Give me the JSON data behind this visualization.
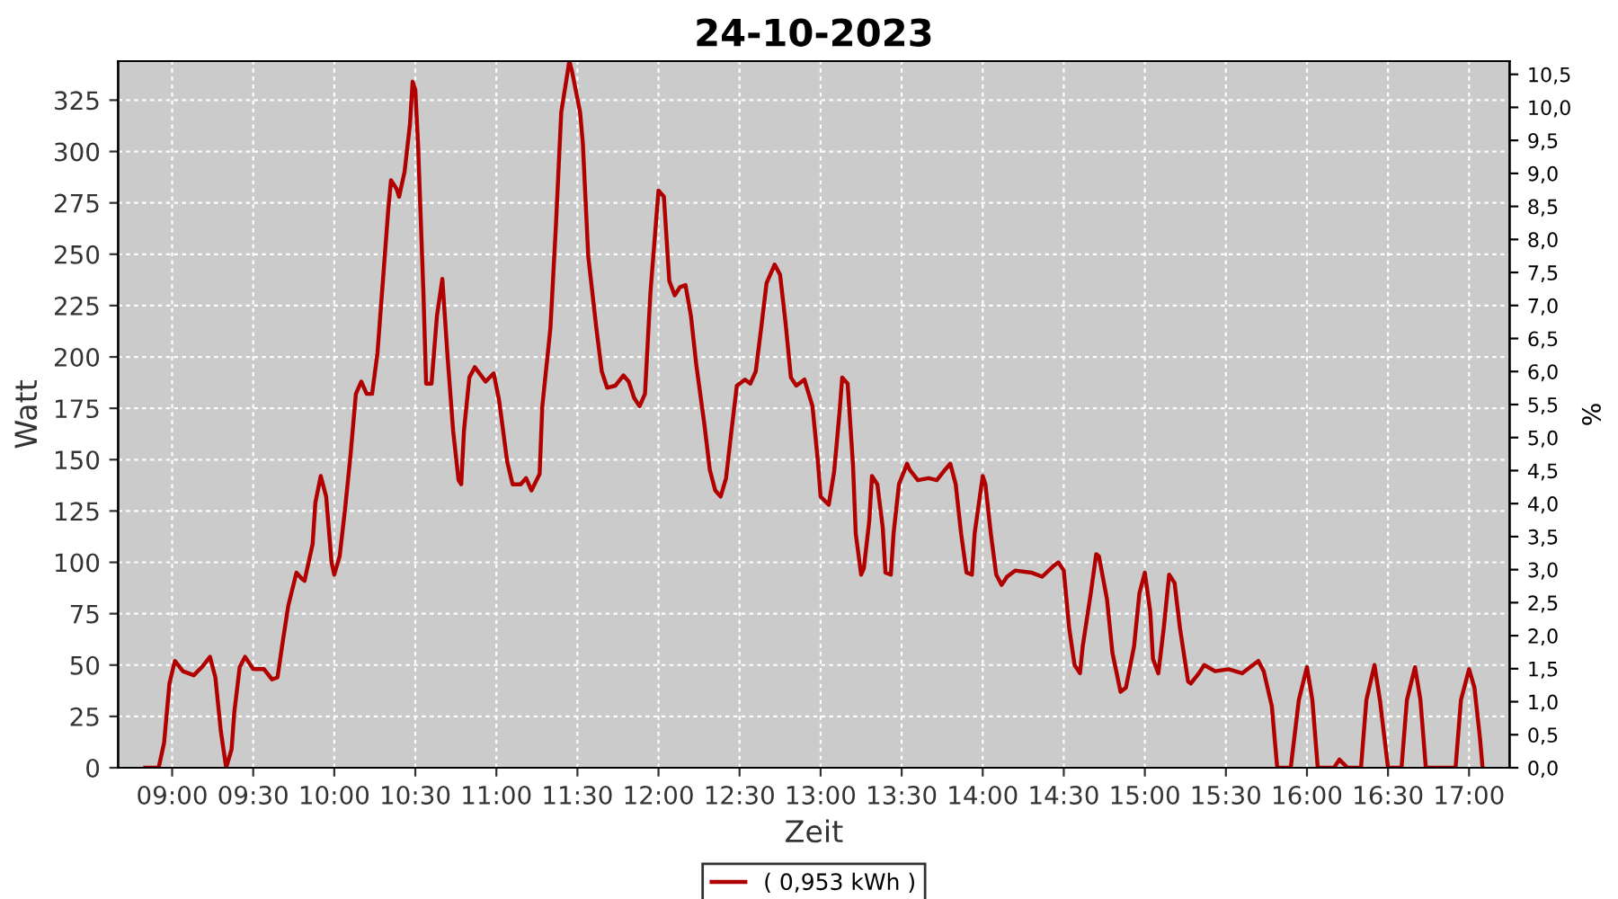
{
  "chart_data": {
    "type": "line",
    "title": "24-10-2023",
    "xlabel": "Zeit",
    "ylabel": "Watt",
    "y2label": "%",
    "x": [
      "2023-10-24T08:50",
      "2023-10-24T08:55",
      "2023-10-24T08:57",
      "2023-10-24T08:59",
      "2023-10-24T09:01",
      "2023-10-24T09:04",
      "2023-10-24T09:08",
      "2023-10-24T09:11",
      "2023-10-24T09:14",
      "2023-10-24T09:16",
      "2023-10-24T09:18",
      "2023-10-24T09:20",
      "2023-10-24T09:22",
      "2023-10-24T09:23",
      "2023-10-24T09:25",
      "2023-10-24T09:27",
      "2023-10-24T09:30",
      "2023-10-24T09:34",
      "2023-10-24T09:37",
      "2023-10-24T09:39",
      "2023-10-24T09:41",
      "2023-10-24T09:43",
      "2023-10-24T09:46",
      "2023-10-24T09:48",
      "2023-10-24T09:49",
      "2023-10-24T09:52",
      "2023-10-24T09:53",
      "2023-10-24T09:55",
      "2023-10-24T09:57",
      "2023-10-24T09:59",
      "2023-10-24T10:00",
      "2023-10-24T10:02",
      "2023-10-24T10:04",
      "2023-10-24T10:06",
      "2023-10-24T10:08",
      "2023-10-24T10:10",
      "2023-10-24T10:12",
      "2023-10-24T10:14",
      "2023-10-24T10:16",
      "2023-10-24T10:18",
      "2023-10-24T10:20",
      "2023-10-24T10:21",
      "2023-10-24T10:23",
      "2023-10-24T10:24",
      "2023-10-24T10:26",
      "2023-10-24T10:28",
      "2023-10-24T10:29",
      "2023-10-24T10:30",
      "2023-10-24T10:31",
      "2023-10-24T10:33",
      "2023-10-24T10:34",
      "2023-10-24T10:36",
      "2023-10-24T10:38",
      "2023-10-24T10:40",
      "2023-10-24T10:42",
      "2023-10-24T10:44",
      "2023-10-24T10:46",
      "2023-10-24T10:47",
      "2023-10-24T10:48",
      "2023-10-24T10:50",
      "2023-10-24T10:52",
      "2023-10-24T10:56",
      "2023-10-24T10:59",
      "2023-10-24T11:01",
      "2023-10-24T11:04",
      "2023-10-24T11:06",
      "2023-10-24T11:09",
      "2023-10-24T11:11",
      "2023-10-24T11:13",
      "2023-10-24T11:16",
      "2023-10-24T11:17",
      "2023-10-24T11:20",
      "2023-10-24T11:22",
      "2023-10-24T11:24",
      "2023-10-24T11:27",
      "2023-10-24T11:28",
      "2023-10-24T11:31",
      "2023-10-24T11:32",
      "2023-10-24T11:34",
      "2023-10-24T11:37",
      "2023-10-24T11:39",
      "2023-10-24T11:41",
      "2023-10-24T11:44",
      "2023-10-24T11:47",
      "2023-10-24T11:49",
      "2023-10-24T11:51",
      "2023-10-24T11:53",
      "2023-10-24T11:55",
      "2023-10-24T11:57",
      "2023-10-24T12:00",
      "2023-10-24T12:02",
      "2023-10-24T12:04",
      "2023-10-24T12:06",
      "2023-10-24T12:08",
      "2023-10-24T12:10",
      "2023-10-24T12:12",
      "2023-10-24T12:14",
      "2023-10-24T12:17",
      "2023-10-24T12:19",
      "2023-10-24T12:21",
      "2023-10-24T12:23",
      "2023-10-24T12:25",
      "2023-10-24T12:27",
      "2023-10-24T12:29",
      "2023-10-24T12:32",
      "2023-10-24T12:34",
      "2023-10-24T12:36",
      "2023-10-24T12:38",
      "2023-10-24T12:40",
      "2023-10-24T12:43",
      "2023-10-24T12:45",
      "2023-10-24T12:47",
      "2023-10-24T12:49",
      "2023-10-24T12:51",
      "2023-10-24T12:54",
      "2023-10-24T12:57",
      "2023-10-24T12:59",
      "2023-10-24T13:00",
      "2023-10-24T13:03",
      "2023-10-24T13:05",
      "2023-10-24T13:07",
      "2023-10-24T13:08",
      "2023-10-24T13:10",
      "2023-10-24T13:12",
      "2023-10-24T13:13",
      "2023-10-24T13:15",
      "2023-10-24T13:16",
      "2023-10-24T13:18",
      "2023-10-24T13:19",
      "2023-10-24T13:21",
      "2023-10-24T13:23",
      "2023-10-24T13:24",
      "2023-10-24T13:26",
      "2023-10-24T13:27",
      "2023-10-24T13:29",
      "2023-10-24T13:32",
      "2023-10-24T13:33",
      "2023-10-24T13:36",
      "2023-10-24T13:40",
      "2023-10-24T13:43",
      "2023-10-24T13:46",
      "2023-10-24T13:48",
      "2023-10-24T13:50",
      "2023-10-24T13:52",
      "2023-10-24T13:54",
      "2023-10-24T13:56",
      "2023-10-24T13:57",
      "2023-10-24T14:00",
      "2023-10-24T14:01",
      "2023-10-24T14:03",
      "2023-10-24T14:05",
      "2023-10-24T14:07",
      "2023-10-24T14:09",
      "2023-10-24T14:12",
      "2023-10-24T14:18",
      "2023-10-24T14:22",
      "2023-10-24T14:26",
      "2023-10-24T14:28",
      "2023-10-24T14:30",
      "2023-10-24T14:32",
      "2023-10-24T14:34",
      "2023-10-24T14:36",
      "2023-10-24T14:37",
      "2023-10-24T14:40",
      "2023-10-24T14:42",
      "2023-10-24T14:43",
      "2023-10-24T14:46",
      "2023-10-24T14:48",
      "2023-10-24T14:51",
      "2023-10-24T14:53",
      "2023-10-24T14:56",
      "2023-10-24T14:58",
      "2023-10-24T15:00",
      "2023-10-24T15:02",
      "2023-10-24T15:03",
      "2023-10-24T15:05",
      "2023-10-24T15:07",
      "2023-10-24T15:09",
      "2023-10-24T15:11",
      "2023-10-24T15:13",
      "2023-10-24T15:16",
      "2023-10-24T15:17",
      "2023-10-24T15:20",
      "2023-10-24T15:22",
      "2023-10-24T15:26",
      "2023-10-24T15:31",
      "2023-10-24T15:36",
      "2023-10-24T15:39",
      "2023-10-24T15:42",
      "2023-10-24T15:44",
      "2023-10-24T15:47",
      "2023-10-24T15:49",
      "2023-10-24T15:54",
      "2023-10-24T15:57",
      "2023-10-24T16:00",
      "2023-10-24T16:02",
      "2023-10-24T16:04",
      "2023-10-24T16:10",
      "2023-10-24T16:12",
      "2023-10-24T16:15",
      "2023-10-24T16:20",
      "2023-10-24T16:22",
      "2023-10-24T16:25",
      "2023-10-24T16:27",
      "2023-10-24T16:30",
      "2023-10-24T16:35",
      "2023-10-24T16:37",
      "2023-10-24T16:40",
      "2023-10-24T16:42",
      "2023-10-24T16:44",
      "2023-10-24T16:49",
      "2023-10-24T16:55",
      "2023-10-24T16:57",
      "2023-10-24T17:00",
      "2023-10-24T17:02",
      "2023-10-24T17:04",
      "2023-10-24T17:05"
    ],
    "series": [
      {
        "name": "( 0,953 kWh )",
        "color": "#b00000",
        "values": [
          0,
          0,
          12,
          41,
          52,
          47,
          45,
          49,
          54,
          44,
          18,
          0,
          9,
          27,
          49,
          54,
          48,
          48,
          43,
          44,
          62,
          79,
          95,
          92,
          91,
          109,
          129,
          142,
          132,
          100,
          94,
          103,
          126,
          152,
          182,
          188,
          182,
          182,
          202,
          237,
          272,
          286,
          282,
          278,
          290,
          313,
          334,
          330,
          304,
          231,
          187,
          187,
          220,
          238,
          199,
          164,
          140,
          138,
          164,
          190,
          195,
          188,
          192,
          179,
          149,
          138,
          138,
          141,
          135,
          143,
          176,
          214,
          263,
          319,
          344,
          339,
          319,
          304,
          249,
          214,
          193,
          185,
          186,
          191,
          188,
          180,
          176,
          182,
          231,
          281,
          278,
          237,
          230,
          234,
          235,
          220,
          196,
          167,
          145,
          135,
          132,
          141,
          164,
          186,
          189,
          187,
          193,
          214,
          236,
          245,
          240,
          217,
          190,
          186,
          189,
          176,
          149,
          132,
          128,
          144,
          173,
          190,
          187,
          147,
          114,
          94,
          97,
          120,
          142,
          138,
          117,
          95,
          94,
          114,
          138,
          148,
          145,
          140,
          141,
          140,
          145,
          148,
          138,
          114,
          95,
          94,
          114,
          142,
          138,
          114,
          94,
          89,
          93,
          96,
          95,
          93,
          98,
          100,
          96,
          68,
          50,
          46,
          59,
          85,
          104,
          103,
          82,
          56,
          37,
          39,
          59,
          85,
          95,
          76,
          53,
          46,
          68,
          94,
          90,
          68,
          42,
          41,
          46,
          50,
          47,
          48,
          46,
          49,
          52,
          47,
          30,
          0,
          0,
          33,
          49,
          33,
          0,
          0,
          4,
          0,
          0,
          33,
          50,
          33,
          0,
          0,
          33,
          49,
          33,
          0,
          0,
          0,
          33,
          48,
          39,
          15,
          0
        ]
      }
    ],
    "xlim": [
      "2023-10-24T08:40",
      "2023-10-24T17:15"
    ],
    "xticks": [
      {
        "value": "2023-10-24T09:00",
        "label": "09:00"
      },
      {
        "value": "2023-10-24T09:30",
        "label": "09:30"
      },
      {
        "value": "2023-10-24T10:00",
        "label": "10:00"
      },
      {
        "value": "2023-10-24T10:30",
        "label": "10:30"
      },
      {
        "value": "2023-10-24T11:00",
        "label": "11:00"
      },
      {
        "value": "2023-10-24T11:30",
        "label": "11:30"
      },
      {
        "value": "2023-10-24T12:00",
        "label": "12:00"
      },
      {
        "value": "2023-10-24T12:30",
        "label": "12:30"
      },
      {
        "value": "2023-10-24T13:00",
        "label": "13:00"
      },
      {
        "value": "2023-10-24T13:30",
        "label": "13:30"
      },
      {
        "value": "2023-10-24T14:00",
        "label": "14:00"
      },
      {
        "value": "2023-10-24T14:30",
        "label": "14:30"
      },
      {
        "value": "2023-10-24T15:00",
        "label": "15:00"
      },
      {
        "value": "2023-10-24T15:30",
        "label": "15:30"
      },
      {
        "value": "2023-10-24T16:00",
        "label": "16:00"
      },
      {
        "value": "2023-10-24T16:30",
        "label": "16:30"
      },
      {
        "value": "2023-10-24T17:00",
        "label": "17:00"
      }
    ],
    "ylim": [
      0,
      344
    ],
    "yticks": [
      0,
      25,
      50,
      75,
      100,
      125,
      150,
      175,
      200,
      225,
      250,
      275,
      300,
      325
    ],
    "y2lim": [
      0,
      10.7
    ],
    "y2ticks": [
      {
        "value": 0,
        "label": "0,0"
      },
      {
        "value": 0.5,
        "label": "0,5"
      },
      {
        "value": 1,
        "label": "1,0"
      },
      {
        "value": 1.5,
        "label": "1,5"
      },
      {
        "value": 2,
        "label": "2,0"
      },
      {
        "value": 2.5,
        "label": "2,5"
      },
      {
        "value": 3,
        "label": "3,0"
      },
      {
        "value": 3.5,
        "label": "3,5"
      },
      {
        "value": 4,
        "label": "4,0"
      },
      {
        "value": 4.5,
        "label": "4,5"
      },
      {
        "value": 5,
        "label": "5,0"
      },
      {
        "value": 5.5,
        "label": "5,5"
      },
      {
        "value": 6,
        "label": "6,0"
      },
      {
        "value": 6.5,
        "label": "6,5"
      },
      {
        "value": 7,
        "label": "7,0"
      },
      {
        "value": 7.5,
        "label": "7,5"
      },
      {
        "value": 8,
        "label": "8,0"
      },
      {
        "value": 8.5,
        "label": "8,5"
      },
      {
        "value": 9,
        "label": "9,0"
      },
      {
        "value": 9.5,
        "label": "9,5"
      },
      {
        "value": 10,
        "label": "10,0"
      },
      {
        "value": 10.5,
        "label": "10,5"
      }
    ],
    "grid": true,
    "legend": "bottom",
    "marker": "none",
    "line_style": "solid"
  }
}
